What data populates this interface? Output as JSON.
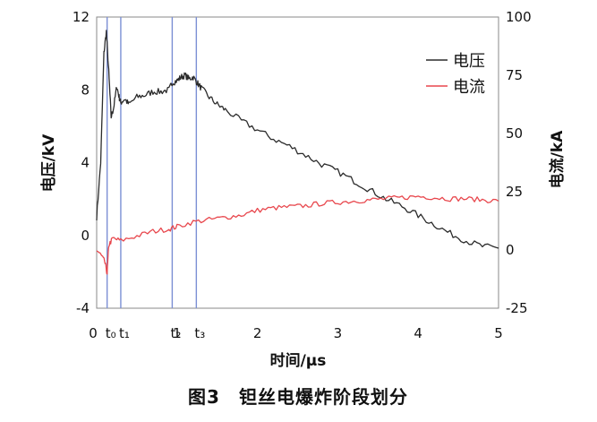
{
  "chart_data": {
    "type": "line",
    "caption": "图3　钽丝电爆炸阶段划分",
    "xlabel": "时间/μs",
    "ylabel_left": "电压/kV",
    "ylabel_right": "电流/kA",
    "xlim": [
      0,
      5
    ],
    "ylim_left": [
      -4,
      12
    ],
    "ylim_right": [
      -25,
      100
    ],
    "x_ticks": [
      "0",
      "1",
      "2",
      "3",
      "4",
      "5"
    ],
    "y_left_ticks": [
      "-4",
      "0",
      "4",
      "8",
      "12"
    ],
    "y_right_ticks": [
      "-25",
      "0",
      "25",
      "50",
      "75",
      "100"
    ],
    "legend_placement": "top-right",
    "markers": [
      {
        "label": "t₀",
        "x": 0.13
      },
      {
        "label": "t₁",
        "x": 0.3
      },
      {
        "label": "t₂",
        "x": 0.94
      },
      {
        "label": "t₃",
        "x": 1.24
      }
    ],
    "series": [
      {
        "name": "电压",
        "axis": "left",
        "color": "#2b2b2b",
        "x": [
          0,
          0.05,
          0.09,
          0.12,
          0.15,
          0.18,
          0.21,
          0.25,
          0.28,
          0.3,
          0.35,
          0.4,
          0.5,
          0.6,
          0.7,
          0.8,
          0.9,
          0.94,
          1.0,
          1.05,
          1.1,
          1.15,
          1.2,
          1.25,
          1.3,
          1.4,
          1.5,
          1.6,
          1.8,
          2.0,
          2.2,
          2.4,
          2.6,
          2.8,
          3.0,
          3.2,
          3.4,
          3.6,
          3.8,
          4.0,
          4.2,
          4.4,
          4.6,
          4.8,
          5.0
        ],
        "y": [
          1.0,
          4.0,
          10.0,
          11.2,
          9.0,
          6.5,
          7.0,
          8.2,
          7.6,
          7.3,
          7.5,
          7.2,
          7.6,
          7.7,
          7.9,
          7.9,
          8.0,
          8.4,
          8.5,
          8.7,
          8.8,
          8.6,
          8.7,
          8.4,
          8.1,
          7.6,
          7.2,
          6.9,
          6.3,
          5.8,
          5.3,
          4.9,
          4.4,
          3.9,
          3.5,
          3.0,
          2.5,
          2.0,
          1.6,
          1.1,
          0.6,
          0.1,
          -0.3,
          -0.6,
          -0.7
        ]
      },
      {
        "name": "电流",
        "axis": "right",
        "color": "#e8474d",
        "x": [
          0,
          0.05,
          0.1,
          0.13,
          0.15,
          0.2,
          0.3,
          0.5,
          0.7,
          0.9,
          1.0,
          1.2,
          1.4,
          1.6,
          1.8,
          2.0,
          2.2,
          2.4,
          2.6,
          2.8,
          3.0,
          3.2,
          3.4,
          3.6,
          3.8,
          4.0,
          4.2,
          4.4,
          4.6,
          4.8,
          5.0
        ],
        "y": [
          0,
          -2,
          -5,
          -10,
          2,
          5,
          4,
          6,
          8,
          9,
          10,
          12,
          13,
          14,
          15,
          17,
          18,
          18.5,
          19,
          20,
          20.5,
          21,
          21.5,
          22,
          22.5,
          23,
          22.5,
          22,
          22,
          21.5,
          21
        ]
      }
    ]
  }
}
